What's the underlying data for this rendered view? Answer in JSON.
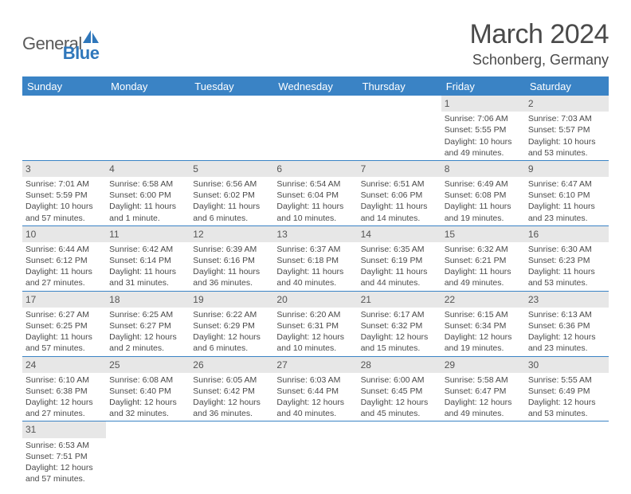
{
  "logo": {
    "text1": "General",
    "text2": "Blue",
    "shape_fill": "#2f77bb"
  },
  "title": "March 2024",
  "location": "Schonberg, Germany",
  "colors": {
    "header_bg": "#3a83c5",
    "header_text": "#ffffff",
    "daynum_bg": "#e7e7e7",
    "border": "#3a83c5",
    "text": "#4a4a4a"
  },
  "weekdays": [
    "Sunday",
    "Monday",
    "Tuesday",
    "Wednesday",
    "Thursday",
    "Friday",
    "Saturday"
  ],
  "weeks": [
    [
      null,
      null,
      null,
      null,
      null,
      {
        "n": "1",
        "sr": "Sunrise: 7:06 AM",
        "ss": "Sunset: 5:55 PM",
        "d1": "Daylight: 10 hours",
        "d2": "and 49 minutes."
      },
      {
        "n": "2",
        "sr": "Sunrise: 7:03 AM",
        "ss": "Sunset: 5:57 PM",
        "d1": "Daylight: 10 hours",
        "d2": "and 53 minutes."
      }
    ],
    [
      {
        "n": "3",
        "sr": "Sunrise: 7:01 AM",
        "ss": "Sunset: 5:59 PM",
        "d1": "Daylight: 10 hours",
        "d2": "and 57 minutes."
      },
      {
        "n": "4",
        "sr": "Sunrise: 6:58 AM",
        "ss": "Sunset: 6:00 PM",
        "d1": "Daylight: 11 hours",
        "d2": "and 1 minute."
      },
      {
        "n": "5",
        "sr": "Sunrise: 6:56 AM",
        "ss": "Sunset: 6:02 PM",
        "d1": "Daylight: 11 hours",
        "d2": "and 6 minutes."
      },
      {
        "n": "6",
        "sr": "Sunrise: 6:54 AM",
        "ss": "Sunset: 6:04 PM",
        "d1": "Daylight: 11 hours",
        "d2": "and 10 minutes."
      },
      {
        "n": "7",
        "sr": "Sunrise: 6:51 AM",
        "ss": "Sunset: 6:06 PM",
        "d1": "Daylight: 11 hours",
        "d2": "and 14 minutes."
      },
      {
        "n": "8",
        "sr": "Sunrise: 6:49 AM",
        "ss": "Sunset: 6:08 PM",
        "d1": "Daylight: 11 hours",
        "d2": "and 19 minutes."
      },
      {
        "n": "9",
        "sr": "Sunrise: 6:47 AM",
        "ss": "Sunset: 6:10 PM",
        "d1": "Daylight: 11 hours",
        "d2": "and 23 minutes."
      }
    ],
    [
      {
        "n": "10",
        "sr": "Sunrise: 6:44 AM",
        "ss": "Sunset: 6:12 PM",
        "d1": "Daylight: 11 hours",
        "d2": "and 27 minutes."
      },
      {
        "n": "11",
        "sr": "Sunrise: 6:42 AM",
        "ss": "Sunset: 6:14 PM",
        "d1": "Daylight: 11 hours",
        "d2": "and 31 minutes."
      },
      {
        "n": "12",
        "sr": "Sunrise: 6:39 AM",
        "ss": "Sunset: 6:16 PM",
        "d1": "Daylight: 11 hours",
        "d2": "and 36 minutes."
      },
      {
        "n": "13",
        "sr": "Sunrise: 6:37 AM",
        "ss": "Sunset: 6:18 PM",
        "d1": "Daylight: 11 hours",
        "d2": "and 40 minutes."
      },
      {
        "n": "14",
        "sr": "Sunrise: 6:35 AM",
        "ss": "Sunset: 6:19 PM",
        "d1": "Daylight: 11 hours",
        "d2": "and 44 minutes."
      },
      {
        "n": "15",
        "sr": "Sunrise: 6:32 AM",
        "ss": "Sunset: 6:21 PM",
        "d1": "Daylight: 11 hours",
        "d2": "and 49 minutes."
      },
      {
        "n": "16",
        "sr": "Sunrise: 6:30 AM",
        "ss": "Sunset: 6:23 PM",
        "d1": "Daylight: 11 hours",
        "d2": "and 53 minutes."
      }
    ],
    [
      {
        "n": "17",
        "sr": "Sunrise: 6:27 AM",
        "ss": "Sunset: 6:25 PM",
        "d1": "Daylight: 11 hours",
        "d2": "and 57 minutes."
      },
      {
        "n": "18",
        "sr": "Sunrise: 6:25 AM",
        "ss": "Sunset: 6:27 PM",
        "d1": "Daylight: 12 hours",
        "d2": "and 2 minutes."
      },
      {
        "n": "19",
        "sr": "Sunrise: 6:22 AM",
        "ss": "Sunset: 6:29 PM",
        "d1": "Daylight: 12 hours",
        "d2": "and 6 minutes."
      },
      {
        "n": "20",
        "sr": "Sunrise: 6:20 AM",
        "ss": "Sunset: 6:31 PM",
        "d1": "Daylight: 12 hours",
        "d2": "and 10 minutes."
      },
      {
        "n": "21",
        "sr": "Sunrise: 6:17 AM",
        "ss": "Sunset: 6:32 PM",
        "d1": "Daylight: 12 hours",
        "d2": "and 15 minutes."
      },
      {
        "n": "22",
        "sr": "Sunrise: 6:15 AM",
        "ss": "Sunset: 6:34 PM",
        "d1": "Daylight: 12 hours",
        "d2": "and 19 minutes."
      },
      {
        "n": "23",
        "sr": "Sunrise: 6:13 AM",
        "ss": "Sunset: 6:36 PM",
        "d1": "Daylight: 12 hours",
        "d2": "and 23 minutes."
      }
    ],
    [
      {
        "n": "24",
        "sr": "Sunrise: 6:10 AM",
        "ss": "Sunset: 6:38 PM",
        "d1": "Daylight: 12 hours",
        "d2": "and 27 minutes."
      },
      {
        "n": "25",
        "sr": "Sunrise: 6:08 AM",
        "ss": "Sunset: 6:40 PM",
        "d1": "Daylight: 12 hours",
        "d2": "and 32 minutes."
      },
      {
        "n": "26",
        "sr": "Sunrise: 6:05 AM",
        "ss": "Sunset: 6:42 PM",
        "d1": "Daylight: 12 hours",
        "d2": "and 36 minutes."
      },
      {
        "n": "27",
        "sr": "Sunrise: 6:03 AM",
        "ss": "Sunset: 6:44 PM",
        "d1": "Daylight: 12 hours",
        "d2": "and 40 minutes."
      },
      {
        "n": "28",
        "sr": "Sunrise: 6:00 AM",
        "ss": "Sunset: 6:45 PM",
        "d1": "Daylight: 12 hours",
        "d2": "and 45 minutes."
      },
      {
        "n": "29",
        "sr": "Sunrise: 5:58 AM",
        "ss": "Sunset: 6:47 PM",
        "d1": "Daylight: 12 hours",
        "d2": "and 49 minutes."
      },
      {
        "n": "30",
        "sr": "Sunrise: 5:55 AM",
        "ss": "Sunset: 6:49 PM",
        "d1": "Daylight: 12 hours",
        "d2": "and 53 minutes."
      }
    ],
    [
      {
        "n": "31",
        "sr": "Sunrise: 6:53 AM",
        "ss": "Sunset: 7:51 PM",
        "d1": "Daylight: 12 hours",
        "d2": "and 57 minutes."
      },
      null,
      null,
      null,
      null,
      null,
      null
    ]
  ]
}
